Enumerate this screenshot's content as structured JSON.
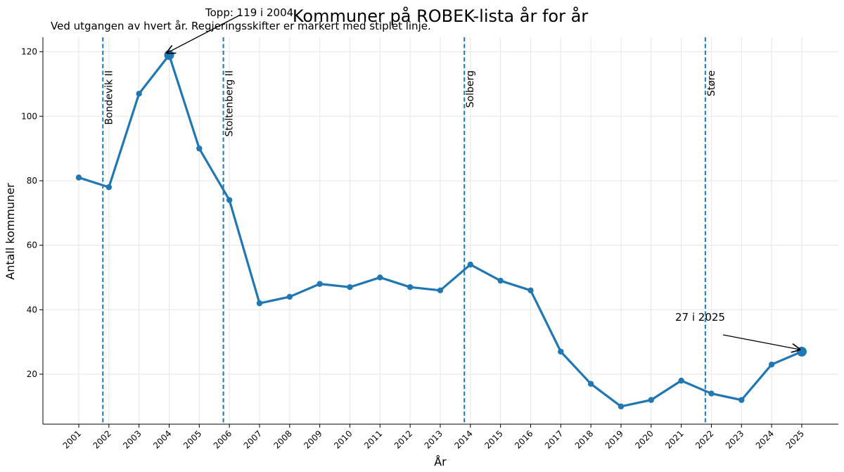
{
  "chart_data": {
    "type": "line",
    "title": "Kommuner på ROBEK-lista år for år",
    "subtitle": "Ved utgangen av hvert år. Regjeringsskifter er markert med stiplet linje.",
    "xlabel": "År",
    "ylabel": "Antall kommuner",
    "x": [
      "2001",
      "2002",
      "2003",
      "2004",
      "2005",
      "2006",
      "2007",
      "2008",
      "2009",
      "2010",
      "2011",
      "2012",
      "2013",
      "2014",
      "2015",
      "2016",
      "2017",
      "2018",
      "2019",
      "2020",
      "2021",
      "2022",
      "2023",
      "2024",
      "2025"
    ],
    "values": [
      81,
      78,
      107,
      119,
      90,
      74,
      42,
      44,
      48,
      47,
      50,
      47,
      46,
      54,
      49,
      46,
      27,
      17,
      10,
      12,
      18,
      14,
      12,
      23,
      27
    ],
    "ylim": [
      4.5,
      124.5
    ],
    "yticks": [
      20,
      40,
      60,
      80,
      100,
      120
    ],
    "grid": true,
    "color": "#1f77b4",
    "government_changes": [
      {
        "label": "Bondevik II",
        "x": 2001.8
      },
      {
        "label": "Stoltenberg II",
        "x": 2005.8
      },
      {
        "label": "Solberg",
        "x": 2013.8
      },
      {
        "label": "Støre",
        "x": 2021.8
      }
    ],
    "annotations": [
      {
        "text": "Topp: 119 i 2004",
        "x": "2004",
        "y": 119
      },
      {
        "text": "27 i 2025",
        "x": "2025",
        "y": 27
      }
    ]
  }
}
